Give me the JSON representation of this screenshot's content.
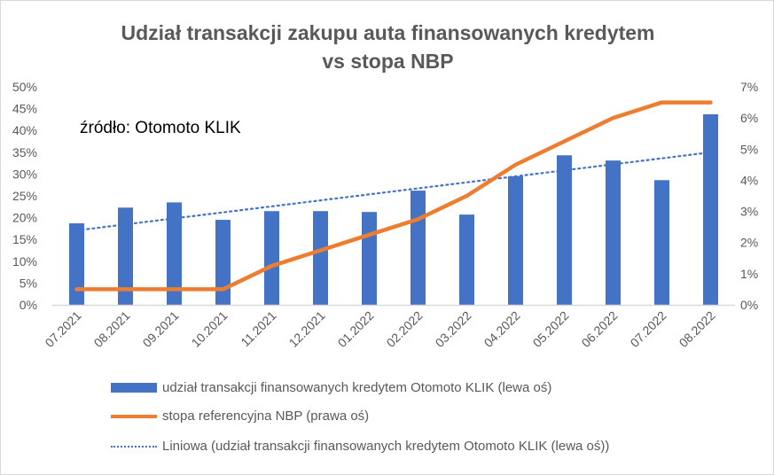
{
  "chart_data": {
    "type": "bar+line",
    "title": [
      "Udział transakcji zakupu auta finansowanych kredytem",
      "vs stopa NBP"
    ],
    "annotation": "źródło: Otomoto KLIK",
    "categories": [
      "07.2021",
      "08.2021",
      "09.2021",
      "10.2021",
      "11.2021",
      "12.2021",
      "01.2022",
      "02.2022",
      "03.2022",
      "04.2022",
      "05.2022",
      "06.2022",
      "07.2022",
      "08.2022"
    ],
    "series": [
      {
        "name": "udział transakcji finansowanych kredytem Otomoto KLIK (lewa oś)",
        "type": "bar",
        "axis": "left",
        "color": "#4472c4",
        "values": [
          18.7,
          22.3,
          23.5,
          19.5,
          21.5,
          21.5,
          21.3,
          26.2,
          20.7,
          29.5,
          34.3,
          33.1,
          28.6,
          43.7
        ]
      },
      {
        "name": "stopa referencyjna NBP (prawa oś)",
        "type": "line",
        "axis": "right",
        "color": "#ed7d31",
        "values": [
          0.5,
          0.5,
          0.5,
          0.5,
          1.25,
          1.75,
          2.25,
          2.75,
          3.5,
          4.5,
          5.25,
          6.0,
          6.5,
          6.5
        ]
      },
      {
        "name": "Liniowa (udział transakcji finansowanych kredytem Otomoto KLIK (lewa oś))",
        "type": "trendline-linear",
        "axis": "left",
        "color": "#4472c4",
        "of_series": 0
      }
    ],
    "left_axis": {
      "ylim": [
        0,
        50
      ],
      "ticks": [
        "0%",
        "5%",
        "10%",
        "15%",
        "20%",
        "25%",
        "30%",
        "35%",
        "40%",
        "45%",
        "50%"
      ]
    },
    "right_axis": {
      "ylim": [
        0,
        7
      ],
      "ticks": [
        "0%",
        "1%",
        "2%",
        "3%",
        "4%",
        "5%",
        "6%",
        "7%"
      ]
    },
    "grid": false,
    "legend_position": "bottom"
  }
}
